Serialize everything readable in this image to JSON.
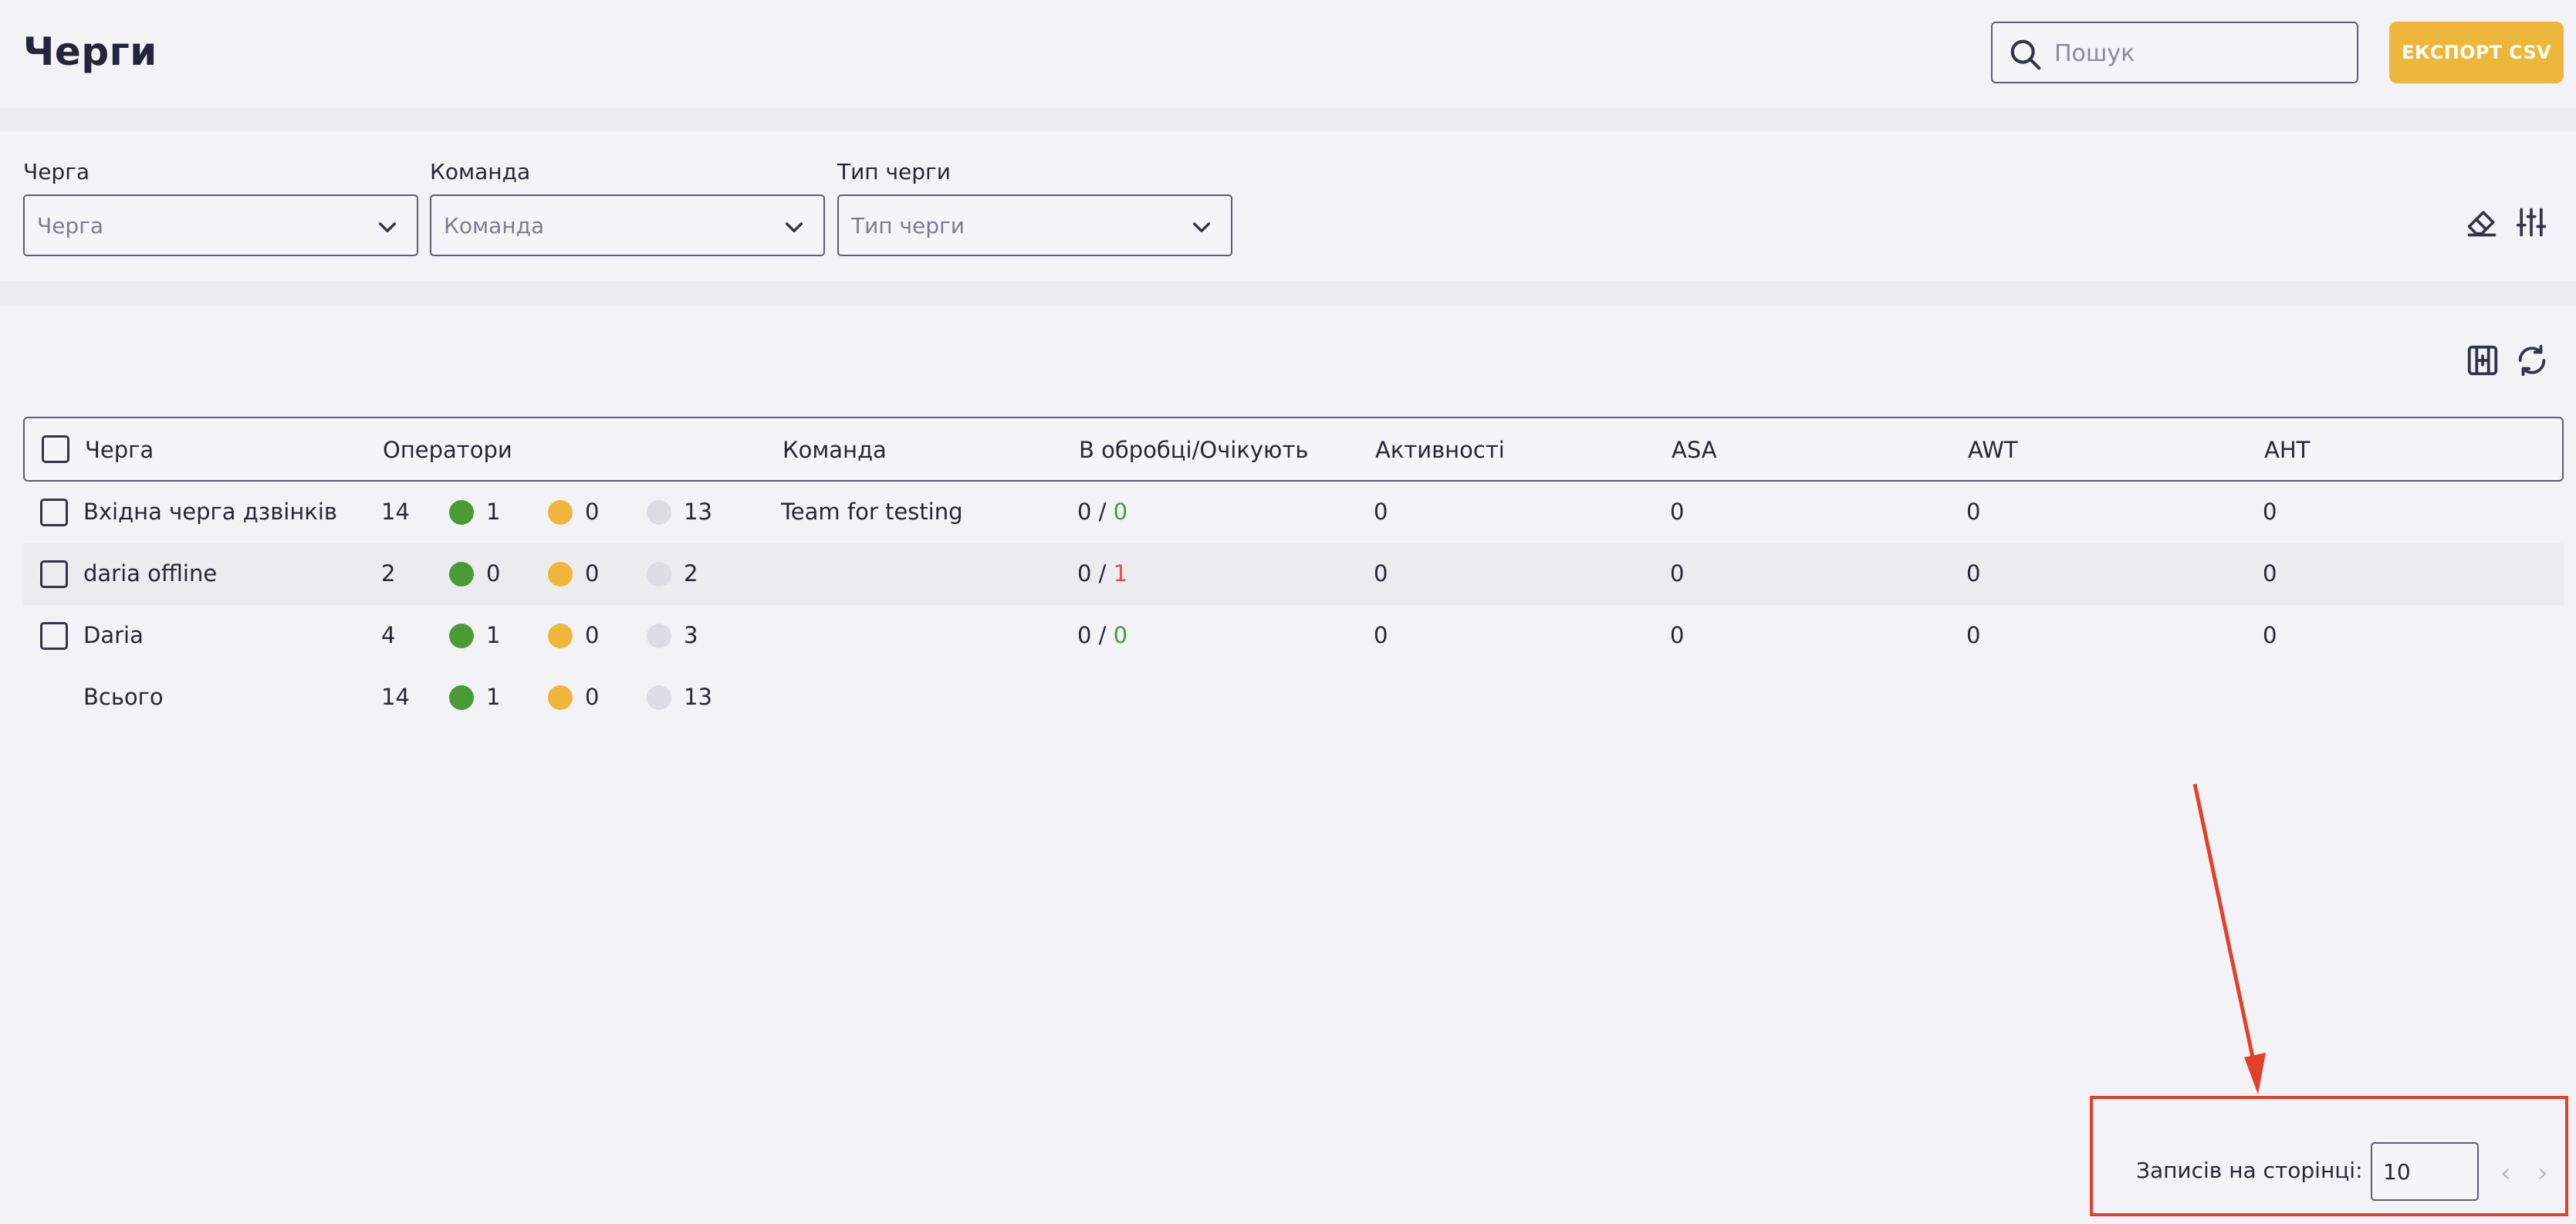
{
  "header": {
    "title": "Черги",
    "search_placeholder": "Пошук",
    "export_label": "ЕКСПОРТ CSV"
  },
  "filters": [
    {
      "label": "Черга",
      "placeholder": "Черга"
    },
    {
      "label": "Команда",
      "placeholder": "Команда"
    },
    {
      "label": "Тип черги",
      "placeholder": "Тип черги"
    }
  ],
  "table": {
    "columns": [
      "Черга",
      "Оператори",
      "Команда",
      "В обробці/Очікують",
      "Активності",
      "ASA",
      "AWT",
      "AHT"
    ],
    "rows": [
      {
        "name": "Вхідна черга дзвінків",
        "operators": "14",
        "green": "1",
        "orange": "0",
        "grey": "13",
        "team": "Team for testing",
        "processing": "0",
        "slash": "/",
        "waiting": "0",
        "waiting_status": "ok",
        "activities": "0",
        "asa": "0",
        "awt": "0",
        "aht": "0"
      },
      {
        "name": "daria offline",
        "operators": "2",
        "green": "0",
        "orange": "0",
        "grey": "2",
        "team": "",
        "processing": "0",
        "slash": "/",
        "waiting": "1",
        "waiting_status": "alert",
        "activities": "0",
        "asa": "0",
        "awt": "0",
        "aht": "0"
      },
      {
        "name": "Daria",
        "operators": "4",
        "green": "1",
        "orange": "0",
        "grey": "3",
        "team": "",
        "processing": "0",
        "slash": "/",
        "waiting": "0",
        "waiting_status": "ok",
        "activities": "0",
        "asa": "0",
        "awt": "0",
        "aht": "0"
      }
    ],
    "total": {
      "name": "Всього",
      "operators": "14",
      "green": "1",
      "orange": "0",
      "grey": "13"
    }
  },
  "pagination": {
    "per_page_label": "Записів на сторінці:",
    "per_page_value": "10",
    "prev_icon": "‹",
    "next_icon": "›"
  },
  "colors": {
    "accent": "#ecb73a",
    "status_online": "#4a9a35",
    "status_busy": "#f0b63c",
    "status_offline": "#dcdce4",
    "annotation": "#e3402c",
    "waiting_alert": "#e05050"
  },
  "icons": [
    "search-icon",
    "chevron-down-icon",
    "eraser-icon",
    "sliders-icon",
    "columns-icon",
    "refresh-icon",
    "chevron-left-icon",
    "chevron-right-icon"
  ]
}
